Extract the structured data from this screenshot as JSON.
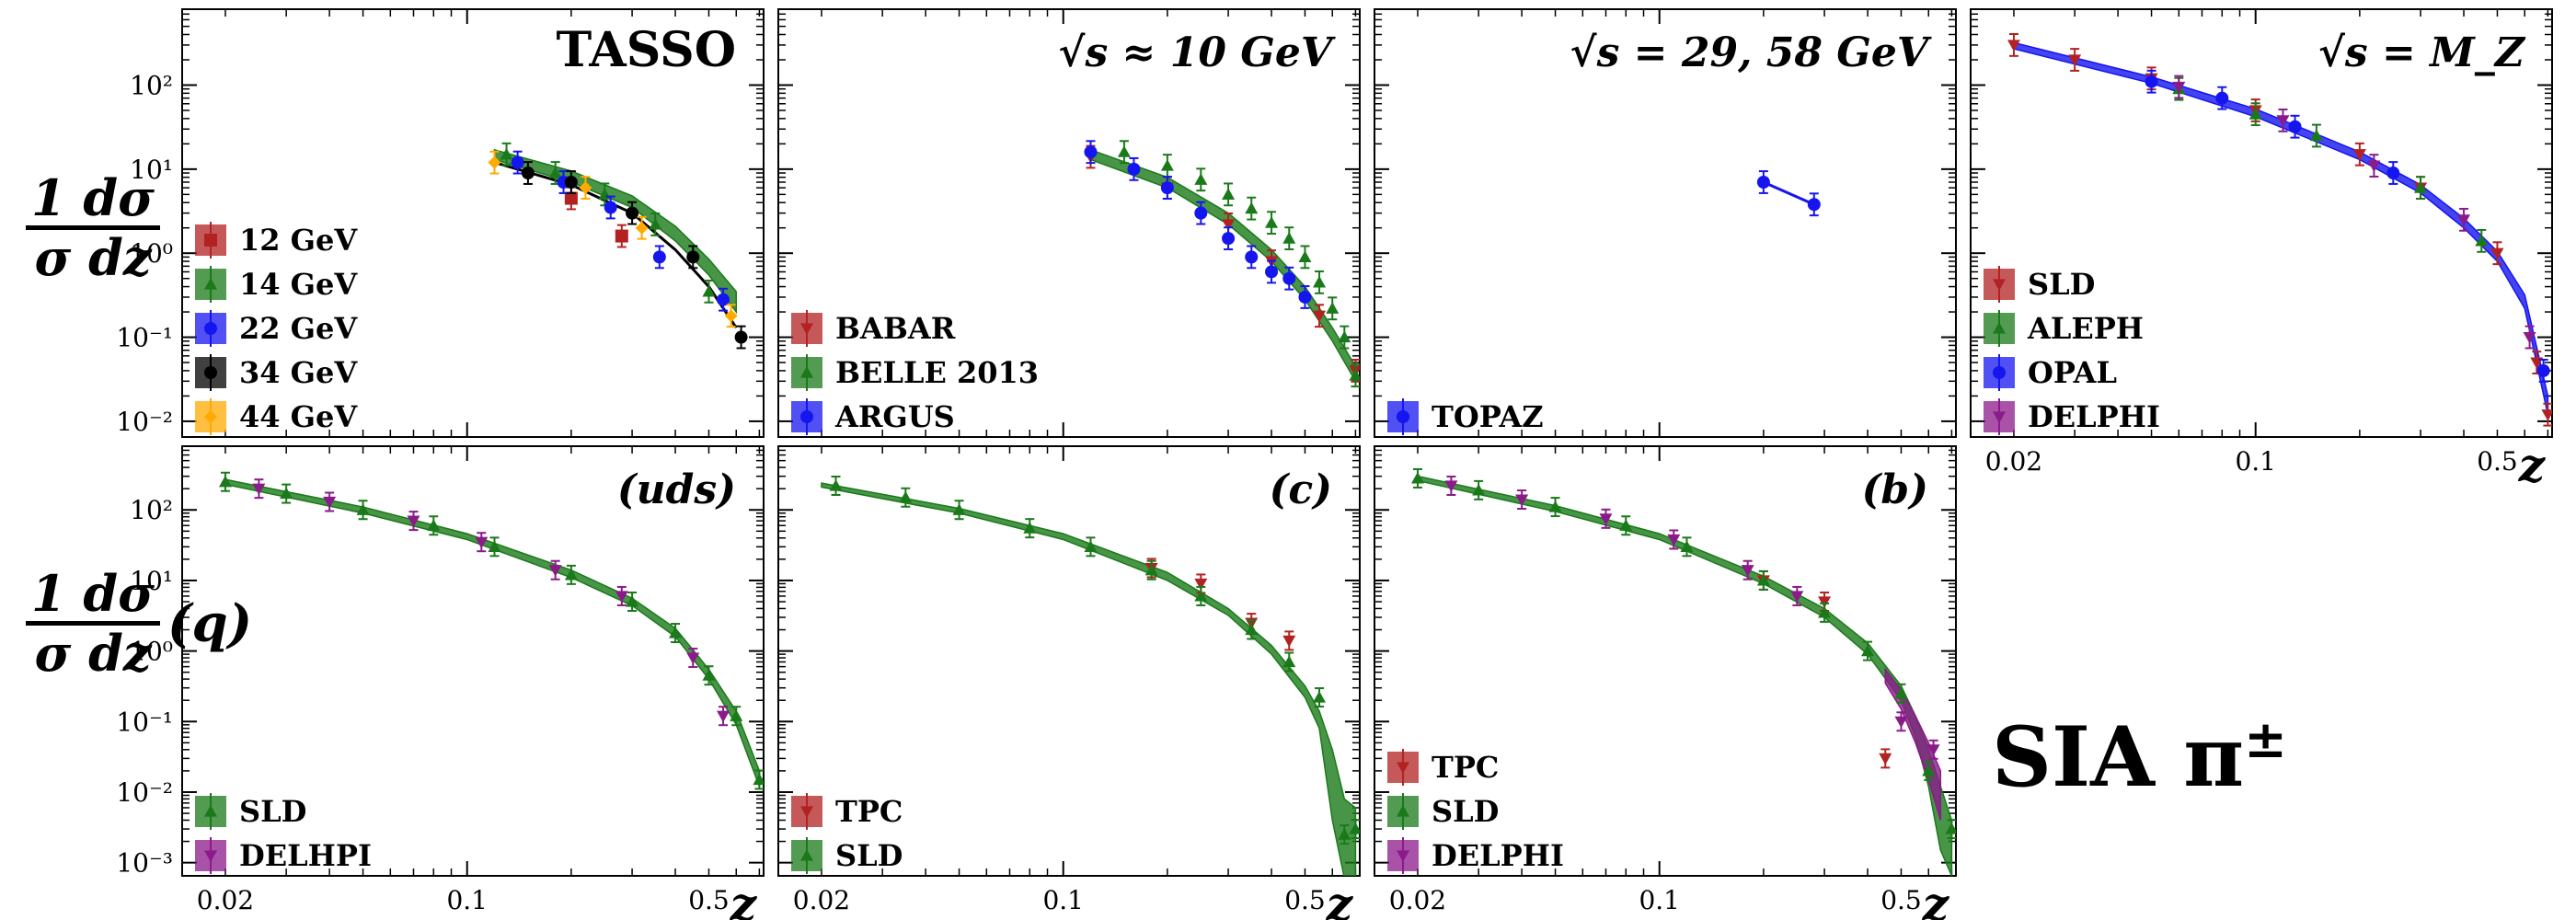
{
  "figure": {
    "ylabel_top": {
      "num": "1 dσ",
      "den": "σ dz",
      "suffix": ""
    },
    "ylabel_bottom": {
      "num": "1 dσ",
      "den": "σ dz",
      "suffix": "(q)"
    },
    "big_label": {
      "main": "SIA π",
      "sup": "±"
    },
    "x_tick_labels": [
      "0.02",
      "0.1",
      "0.5"
    ],
    "x_ticks": [
      0.02,
      0.1,
      0.5
    ],
    "x_label": "z",
    "xlim": [
      0.015,
      0.72
    ],
    "ylim": [
      0.0065,
      800
    ],
    "y_tick_labels": [
      "10⁻²",
      "10⁻¹",
      "10⁰",
      "10¹",
      "10²"
    ],
    "y_tick_labels_bottom": [
      "10⁻³",
      "10⁻²",
      "10⁻¹",
      "10⁰",
      "10¹",
      "10²"
    ],
    "colors": {
      "red": "#b22222",
      "green": "#1a7a1a",
      "blue": "#1515f0",
      "black": "#000000",
      "orange": "#ffaa00",
      "purple": "#8b1a8b"
    }
  },
  "chart_data": [
    {
      "type": "scatter",
      "panel": "TASSO",
      "title": "TASSO",
      "row": 0,
      "col": 0,
      "ylim": [
        0.0065,
        800
      ],
      "series": [
        {
          "name": "12 GeV",
          "color": "red",
          "marker": "s",
          "points": [
            [
              0.2,
              4.5
            ],
            [
              0.28,
              1.6
            ]
          ]
        },
        {
          "name": "14 GeV",
          "color": "green",
          "marker": "^",
          "points": [
            [
              0.13,
              15
            ],
            [
              0.18,
              9
            ],
            [
              0.25,
              5
            ],
            [
              0.35,
              2.2
            ],
            [
              0.5,
              0.35
            ]
          ]
        },
        {
          "name": "22 GeV",
          "color": "blue",
          "marker": "o",
          "points": [
            [
              0.14,
              12
            ],
            [
              0.19,
              7
            ],
            [
              0.26,
              3.5
            ],
            [
              0.36,
              0.9
            ],
            [
              0.55,
              0.28
            ]
          ]
        },
        {
          "name": "34 GeV",
          "color": "black",
          "marker": "o",
          "points": [
            [
              0.15,
              9
            ],
            [
              0.2,
              7
            ],
            [
              0.3,
              3
            ],
            [
              0.45,
              0.9
            ],
            [
              0.62,
              0.1
            ]
          ]
        },
        {
          "name": "44 GeV",
          "color": "orange",
          "marker": "D",
          "points": [
            [
              0.12,
              12
            ],
            [
              0.22,
              6
            ],
            [
              0.32,
              2
            ],
            [
              0.58,
              0.18
            ]
          ]
        }
      ],
      "bands": [
        {
          "color": "green",
          "x": [
            0.12,
            0.2,
            0.3,
            0.4,
            0.5,
            0.6
          ],
          "lo": [
            13,
            7,
            3.5,
            1.4,
            0.55,
            0.2
          ],
          "hi": [
            17,
            9.5,
            4.8,
            2.1,
            0.85,
            0.35
          ]
        },
        {
          "color": "black",
          "line": true,
          "x": [
            0.12,
            0.2,
            0.3,
            0.4,
            0.5,
            0.6
          ],
          "y": [
            12,
            6.5,
            3,
            1.1,
            0.4,
            0.13
          ]
        }
      ]
    },
    {
      "type": "scatter",
      "panel": "10GeV",
      "title": "√s ≈ 10 GeV",
      "row": 0,
      "col": 1,
      "ylim": [
        0.0065,
        800
      ],
      "series": [
        {
          "name": "BABAR",
          "color": "red",
          "marker": "v",
          "points": [
            [
              0.12,
              14
            ],
            [
              0.2,
              6
            ],
            [
              0.3,
              2.2
            ],
            [
              0.4,
              0.8
            ],
            [
              0.55,
              0.18
            ],
            [
              0.7,
              0.04
            ]
          ]
        },
        {
          "name": "BELLE 2013",
          "color": "green",
          "marker": "^",
          "points": [
            [
              0.15,
              16
            ],
            [
              0.2,
              11
            ],
            [
              0.25,
              7.5
            ],
            [
              0.3,
              5
            ],
            [
              0.35,
              3.4
            ],
            [
              0.4,
              2.3
            ],
            [
              0.45,
              1.5
            ],
            [
              0.5,
              0.9
            ],
            [
              0.55,
              0.45
            ],
            [
              0.6,
              0.22
            ],
            [
              0.65,
              0.1
            ],
            [
              0.7,
              0.035
            ]
          ]
        },
        {
          "name": "ARGUS",
          "color": "blue",
          "marker": "o",
          "points": [
            [
              0.12,
              16
            ],
            [
              0.16,
              10
            ],
            [
              0.2,
              6
            ],
            [
              0.25,
              3
            ],
            [
              0.3,
              1.5
            ],
            [
              0.35,
              0.9
            ],
            [
              0.4,
              0.6
            ],
            [
              0.45,
              0.5
            ],
            [
              0.5,
              0.3
            ]
          ]
        }
      ],
      "bands": [
        {
          "color": "green",
          "x": [
            0.12,
            0.2,
            0.3,
            0.4,
            0.5,
            0.6,
            0.7
          ],
          "lo": [
            13,
            6,
            2.2,
            0.8,
            0.28,
            0.09,
            0.03
          ],
          "hi": [
            17,
            8,
            3,
            1.1,
            0.4,
            0.13,
            0.045
          ]
        }
      ]
    },
    {
      "type": "scatter",
      "panel": "29-58GeV",
      "title": "√s = 29, 58 GeV",
      "row": 0,
      "col": 2,
      "ylim": [
        0.0065,
        800
      ],
      "series": [
        {
          "name": "TOPAZ",
          "color": "blue",
          "marker": "o",
          "points": [
            [
              0.2,
              7
            ],
            [
              0.28,
              3.8
            ]
          ]
        }
      ],
      "bands": [
        {
          "color": "blue",
          "line": true,
          "x": [
            0.2,
            0.28
          ],
          "y": [
            7,
            3.8
          ]
        }
      ]
    },
    {
      "type": "scatter",
      "panel": "MZ",
      "title": "√s = M_Z",
      "row": 0,
      "col": 3,
      "ylim": [
        0.0065,
        800
      ],
      "series": [
        {
          "name": "SLD",
          "color": "red",
          "marker": "v",
          "points": [
            [
              0.02,
              300
            ],
            [
              0.03,
              200
            ],
            [
              0.05,
              120
            ],
            [
              0.1,
              50
            ],
            [
              0.2,
              15
            ],
            [
              0.3,
              6
            ],
            [
              0.5,
              1
            ],
            [
              0.65,
              0.05
            ],
            [
              0.7,
              0.012
            ]
          ]
        },
        {
          "name": "ALEPH",
          "color": "green",
          "marker": "^",
          "points": [
            [
              0.06,
              90
            ],
            [
              0.1,
              45
            ],
            [
              0.15,
              25
            ],
            [
              0.3,
              6
            ],
            [
              0.45,
              1.4
            ]
          ]
        },
        {
          "name": "OPAL",
          "color": "blue",
          "marker": "o",
          "points": [
            [
              0.05,
              110
            ],
            [
              0.08,
              70
            ],
            [
              0.13,
              32
            ],
            [
              0.25,
              9
            ],
            [
              0.68,
              0.04
            ]
          ]
        },
        {
          "name": "DELPHI",
          "color": "purple",
          "marker": "v",
          "points": [
            [
              0.06,
              95
            ],
            [
              0.12,
              38
            ],
            [
              0.22,
              11
            ],
            [
              0.4,
              2.5
            ],
            [
              0.62,
              0.1
            ]
          ]
        }
      ],
      "bands": [
        {
          "color": "blue",
          "x": [
            0.02,
            0.05,
            0.1,
            0.2,
            0.3,
            0.4,
            0.5,
            0.6,
            0.7
          ],
          "lo": [
            270,
            105,
            42,
            13,
            5.2,
            2.0,
            0.8,
            0.22,
            0.012
          ],
          "hi": [
            320,
            125,
            52,
            16,
            6.5,
            2.6,
            1.05,
            0.32,
            0.02
          ]
        }
      ]
    },
    {
      "type": "scatter",
      "panel": "uds",
      "title": "(uds)",
      "row": 1,
      "col": 0,
      "ylim": [
        0.00065,
        800
      ],
      "series": [
        {
          "name": "SLD",
          "color": "green",
          "marker": "^",
          "points": [
            [
              0.02,
              250
            ],
            [
              0.03,
              170
            ],
            [
              0.05,
              100
            ],
            [
              0.08,
              60
            ],
            [
              0.12,
              30
            ],
            [
              0.2,
              12
            ],
            [
              0.3,
              5
            ],
            [
              0.4,
              1.8
            ],
            [
              0.5,
              0.45
            ],
            [
              0.6,
              0.12
            ],
            [
              0.7,
              0.015
            ]
          ]
        },
        {
          "name": "DELHPI",
          "color": "purple",
          "marker": "v",
          "points": [
            [
              0.025,
              200
            ],
            [
              0.04,
              130
            ],
            [
              0.07,
              70
            ],
            [
              0.11,
              35
            ],
            [
              0.18,
              14
            ],
            [
              0.28,
              6
            ],
            [
              0.45,
              0.8
            ],
            [
              0.55,
              0.12
            ]
          ]
        }
      ],
      "bands": [
        {
          "color": "green",
          "x": [
            0.02,
            0.05,
            0.1,
            0.2,
            0.3,
            0.4,
            0.5,
            0.6,
            0.7
          ],
          "lo": [
            230,
            90,
            38,
            11,
            4.4,
            1.6,
            0.4,
            0.09,
            0.012
          ],
          "hi": [
            270,
            110,
            46,
            14,
            5.6,
            2.1,
            0.55,
            0.14,
            0.02
          ]
        }
      ]
    },
    {
      "type": "scatter",
      "panel": "c",
      "title": "(c)",
      "row": 1,
      "col": 1,
      "ylim": [
        0.00065,
        800
      ],
      "series": [
        {
          "name": "TPC",
          "color": "red",
          "marker": "v",
          "points": [
            [
              0.18,
              15
            ],
            [
              0.25,
              9
            ],
            [
              0.35,
              2.5
            ],
            [
              0.45,
              1.4
            ]
          ]
        },
        {
          "name": "SLD",
          "color": "green",
          "marker": "^",
          "points": [
            [
              0.022,
              220
            ],
            [
              0.035,
              150
            ],
            [
              0.05,
              100
            ],
            [
              0.08,
              55
            ],
            [
              0.12,
              30
            ],
            [
              0.18,
              14
            ],
            [
              0.25,
              6
            ],
            [
              0.35,
              2
            ],
            [
              0.45,
              0.7
            ],
            [
              0.55,
              0.22
            ],
            [
              0.65,
              0.0025
            ],
            [
              0.7,
              0.003
            ]
          ]
        }
      ],
      "bands": [
        {
          "color": "green",
          "x": [
            0.02,
            0.05,
            0.1,
            0.2,
            0.3,
            0.4,
            0.5,
            0.55,
            0.6,
            0.65,
            0.7
          ],
          "lo": [
            210,
            90,
            38,
            10,
            3.2,
            0.9,
            0.22,
            0.08,
            0.004,
            0.0006,
            0.0006
          ],
          "hi": [
            240,
            105,
            46,
            13,
            4,
            1.2,
            0.32,
            0.14,
            0.04,
            0.008,
            0.006
          ]
        }
      ]
    },
    {
      "type": "scatter",
      "panel": "b",
      "title": "(b)",
      "row": 1,
      "col": 2,
      "ylim": [
        0.00065,
        800
      ],
      "series": [
        {
          "name": "TPC",
          "color": "red",
          "marker": "v",
          "points": [
            [
              0.2,
              10
            ],
            [
              0.3,
              5
            ],
            [
              0.45,
              0.03
            ]
          ]
        },
        {
          "name": "SLD",
          "color": "green",
          "marker": "^",
          "points": [
            [
              0.02,
              280
            ],
            [
              0.03,
              190
            ],
            [
              0.05,
              110
            ],
            [
              0.08,
              60
            ],
            [
              0.12,
              30
            ],
            [
              0.2,
              10
            ],
            [
              0.3,
              3.5
            ],
            [
              0.4,
              1
            ],
            [
              0.5,
              0.25
            ],
            [
              0.6,
              0.02
            ],
            [
              0.7,
              0.003
            ]
          ]
        },
        {
          "name": "DELPHI",
          "color": "purple",
          "marker": "v",
          "points": [
            [
              0.025,
              220
            ],
            [
              0.04,
              140
            ],
            [
              0.07,
              75
            ],
            [
              0.11,
              38
            ],
            [
              0.18,
              14
            ],
            [
              0.25,
              6
            ],
            [
              0.5,
              0.1
            ],
            [
              0.62,
              0.04
            ]
          ]
        }
      ],
      "bands": [
        {
          "color": "green",
          "x": [
            0.02,
            0.05,
            0.1,
            0.2,
            0.3,
            0.4,
            0.5,
            0.55,
            0.6,
            0.65,
            0.7
          ],
          "lo": [
            260,
            95,
            38,
            9,
            3,
            0.9,
            0.2,
            0.06,
            0.012,
            0.0015,
            0.00065
          ],
          "hi": [
            300,
            115,
            46,
            11.5,
            4,
            1.3,
            0.32,
            0.12,
            0.04,
            0.012,
            0.004
          ]
        },
        {
          "color": "purple",
          "x": [
            0.45,
            0.5,
            0.55,
            0.6,
            0.65
          ],
          "lo": [
            0.35,
            0.15,
            0.05,
            0.015,
            0.004
          ],
          "hi": [
            0.55,
            0.28,
            0.12,
            0.05,
            0.02
          ]
        }
      ]
    }
  ]
}
